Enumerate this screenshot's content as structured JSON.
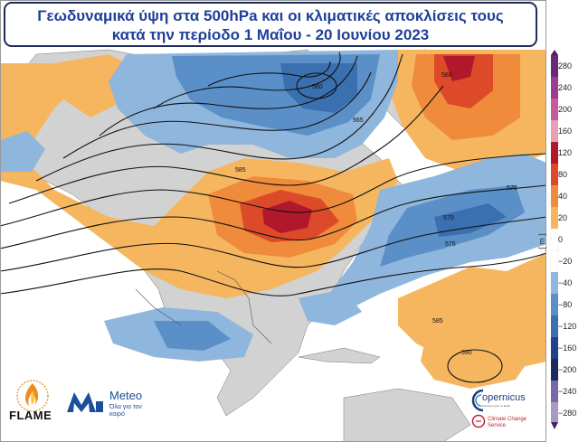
{
  "title": {
    "line1": "Γεωδυναμικά ύψη στα 500hPa και οι κλιματικές αποκλίσεις τους",
    "line2": "κατά την περίοδο 1 Μαΐου - 20 Ιουνίου 2023"
  },
  "colorbar": {
    "unit": "[ m ]",
    "labels": [
      "280",
      "240",
      "200",
      "160",
      "120",
      "80",
      "40",
      "20",
      "0",
      "−20",
      "−40",
      "−80",
      "−120",
      "−160",
      "−200",
      "−240",
      "−280"
    ]
  },
  "contour_labels": [
    "585",
    "580",
    "575",
    "570",
    "565",
    "560",
    "585",
    "590",
    "570"
  ],
  "colors": {
    "ocean": "#ffffff",
    "land": "#d2d2d2",
    "pos1": "#f5b65f",
    "pos2": "#ef8b3a",
    "pos3": "#dd4a2a",
    "pos4": "#b2182b",
    "neg1": "#8fb6dc",
    "neg2": "#5a8fc8",
    "neg3": "#3a6fb0",
    "title_text": "#1f3f9a",
    "title_border": "#1e2a5a"
  },
  "logos": {
    "flame": "FLAME",
    "meteo_name": "Meteo",
    "meteo_tagline": "Όλα για τον καιρό",
    "copernicus": "opernicus",
    "copernicus_sub": "Europe's eyes on Earth",
    "c3s": "Climate Change Service"
  }
}
